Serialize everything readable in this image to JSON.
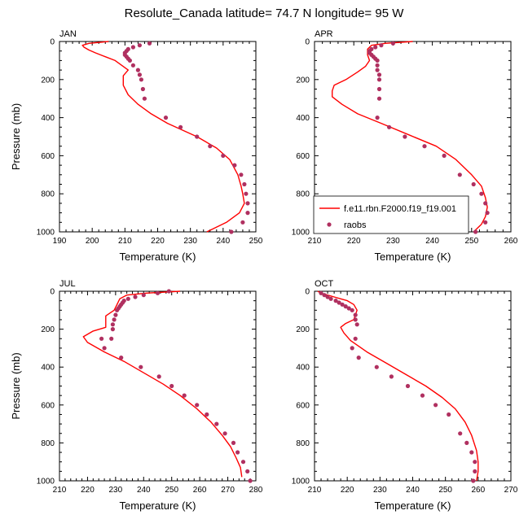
{
  "title": "Resolute_Canada  latitude= 74.7 N longitude= 95 W",
  "colors": {
    "model": "#ff0000",
    "obs": "#b03060",
    "axis": "#000000"
  },
  "legend": {
    "placement": "inside-right (APR panel)",
    "model_label": "f.e11.rbn.F2000.f19_f19.001",
    "obs_label": "raobs"
  },
  "chart_data": [
    {
      "type": "line",
      "title": "JAN",
      "xlabel": "Temperature (K)",
      "ylabel": "Pressure (mb)",
      "xlim": [
        190,
        250
      ],
      "ylim": [
        1000,
        0
      ],
      "y_inverted": true,
      "xticks": [
        190,
        200,
        210,
        220,
        230,
        240,
        250
      ],
      "yticks": [
        0,
        200,
        400,
        600,
        800,
        1000
      ],
      "series": [
        {
          "name": "f.e11.rbn.F2000.f19_f19.001",
          "kind": "line",
          "x": [
            205,
            199,
            197,
            197.5,
            199,
            201,
            204,
            207,
            211,
            209.5,
            209.5,
            211,
            214,
            218,
            223,
            232,
            238,
            242,
            244.5,
            245.5,
            246,
            246.5,
            245,
            241,
            235
          ],
          "y": [
            0,
            10,
            20,
            30,
            45,
            60,
            80,
            100,
            150,
            180,
            230,
            280,
            330,
            380,
            430,
            500,
            560,
            620,
            700,
            760,
            800,
            850,
            900,
            950,
            1000
          ]
        },
        {
          "name": "raobs",
          "kind": "scatter",
          "x": [
            217.5,
            214.5,
            212.5,
            211,
            210.5,
            210,
            210,
            210.5,
            211,
            211.5,
            212.5,
            214,
            214.5,
            215,
            215.5,
            216,
            222.5,
            227,
            232,
            236,
            240,
            243.5,
            245.5,
            246.5,
            247,
            247.5,
            247.5,
            246,
            242.5
          ],
          "y": [
            10,
            20,
            30,
            40,
            50,
            60,
            70,
            80,
            90,
            100,
            125,
            150,
            175,
            200,
            250,
            300,
            400,
            450,
            500,
            550,
            600,
            650,
            700,
            750,
            800,
            850,
            900,
            950,
            1000
          ]
        }
      ]
    },
    {
      "type": "line",
      "title": "APR",
      "xlabel": "Temperature (K)",
      "ylabel": "Pressure (mb)",
      "xlim": [
        210,
        260
      ],
      "ylim": [
        1000,
        0
      ],
      "y_inverted": true,
      "xticks": [
        210,
        220,
        230,
        240,
        250,
        260
      ],
      "yticks": [
        0,
        200,
        400,
        600,
        800,
        1000
      ],
      "series": [
        {
          "name": "f.e11.rbn.F2000.f19_f19.001",
          "kind": "line",
          "x": [
            235,
            228,
            224.5,
            223.5,
            223.5,
            224,
            223,
            221,
            218,
            215,
            214.5,
            214.5,
            217,
            221,
            227,
            234,
            241,
            246,
            250,
            252.5,
            253.5,
            254,
            253.5,
            252.5,
            250.5
          ],
          "y": [
            0,
            10,
            20,
            40,
            70,
            100,
            130,
            160,
            200,
            230,
            260,
            290,
            330,
            380,
            430,
            490,
            550,
            620,
            700,
            760,
            820,
            870,
            920,
            960,
            1000
          ]
        },
        {
          "name": "raobs",
          "kind": "scatter",
          "x": [
            230,
            227,
            225.5,
            224.5,
            224,
            224,
            224.5,
            225,
            225.5,
            226,
            226,
            226,
            226.5,
            226.5,
            226.5,
            226.5,
            226,
            229,
            233,
            238,
            243,
            247,
            250.5,
            252.5,
            253.5,
            254,
            253.5,
            251
          ],
          "y": [
            10,
            20,
            30,
            40,
            50,
            60,
            70,
            80,
            90,
            100,
            125,
            150,
            175,
            200,
            250,
            300,
            400,
            450,
            500,
            550,
            600,
            700,
            750,
            800,
            850,
            900,
            950,
            1000
          ]
        }
      ]
    },
    {
      "type": "line",
      "title": "JUL",
      "xlabel": "Temperature (K)",
      "ylabel": "Pressure (mb)",
      "xlim": [
        210,
        280
      ],
      "ylim": [
        1000,
        0
      ],
      "y_inverted": true,
      "xticks": [
        210,
        220,
        230,
        240,
        250,
        260,
        270,
        280
      ],
      "yticks": [
        0,
        200,
        400,
        600,
        800,
        1000
      ],
      "series": [
        {
          "name": "f.e11.rbn.F2000.f19_f19.001",
          "kind": "line",
          "x": [
            253,
            241,
            234,
            231.5,
            230.5,
            229.5,
            226.5,
            226.5,
            226.5,
            222,
            218.5,
            220,
            226,
            233,
            240,
            247,
            253,
            259,
            264,
            268,
            271,
            273,
            274.5,
            275
          ],
          "y": [
            0,
            10,
            20,
            40,
            70,
            100,
            130,
            160,
            190,
            210,
            240,
            270,
            320,
            370,
            430,
            490,
            550,
            620,
            690,
            760,
            820,
            880,
            930,
            980
          ]
        },
        {
          "name": "raobs",
          "kind": "scatter",
          "x": [
            249,
            245,
            240,
            237,
            234.5,
            233,
            232.5,
            232,
            231.5,
            231,
            230.5,
            230,
            229.5,
            229,
            229,
            228.5,
            225,
            226,
            232,
            239,
            245.5,
            250,
            254.5,
            259,
            262.5,
            266,
            269,
            272,
            273.5,
            275.5,
            277,
            278
          ],
          "y": [
            0,
            10,
            20,
            30,
            40,
            50,
            60,
            70,
            80,
            90,
            100,
            125,
            150,
            175,
            200,
            250,
            250,
            300,
            350,
            400,
            450,
            500,
            550,
            600,
            650,
            700,
            750,
            800,
            850,
            900,
            950,
            1000
          ]
        }
      ]
    },
    {
      "type": "line",
      "title": "OCT",
      "xlabel": "Temperature (K)",
      "ylabel": "Pressure (mb)",
      "xlim": [
        210,
        270
      ],
      "ylim": [
        1000,
        0
      ],
      "y_inverted": true,
      "xticks": [
        210,
        220,
        230,
        240,
        250,
        260,
        270
      ],
      "yticks": [
        0,
        200,
        400,
        600,
        800,
        1000
      ],
      "series": [
        {
          "name": "f.e11.rbn.F2000.f19_f19.001",
          "kind": "line",
          "x": [
            211,
            212,
            214,
            216,
            218,
            220,
            222,
            223,
            222,
            219.5,
            218,
            219,
            221,
            226,
            232,
            238,
            244,
            249,
            253,
            256,
            258,
            259.5,
            260,
            260,
            259.5
          ],
          "y": [
            0,
            10,
            20,
            30,
            40,
            50,
            70,
            100,
            150,
            170,
            190,
            220,
            260,
            320,
            380,
            440,
            500,
            560,
            620,
            690,
            760,
            840,
            900,
            950,
            1000
          ]
        },
        {
          "name": "raobs",
          "kind": "scatter",
          "x": [
            212,
            213,
            214,
            215,
            216.5,
            217.5,
            218.5,
            219.5,
            220.5,
            221.5,
            222.5,
            222.5,
            223,
            222.5,
            221.5,
            223.5,
            229,
            233.5,
            238.5,
            243,
            247,
            251,
            254.5,
            256.5,
            258,
            259,
            259,
            258.5
          ],
          "y": [
            10,
            20,
            30,
            40,
            50,
            60,
            70,
            80,
            90,
            100,
            125,
            150,
            175,
            250,
            300,
            350,
            400,
            450,
            500,
            550,
            600,
            650,
            750,
            800,
            850,
            900,
            950,
            1000
          ]
        }
      ]
    }
  ]
}
